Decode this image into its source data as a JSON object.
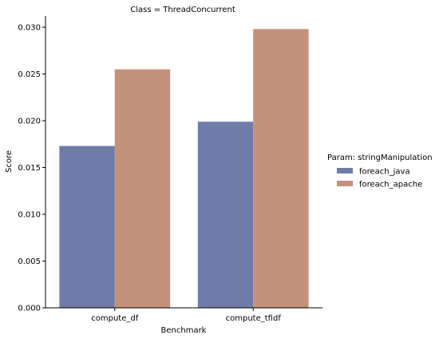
{
  "chart_data": {
    "type": "bar",
    "title": "Class = ThreadConcurrent",
    "xlabel": "Benchmark",
    "ylabel": "Score",
    "categories": [
      "compute_df",
      "compute_tfidf"
    ],
    "series": [
      {
        "name": "foreach_java",
        "values": [
          0.0173,
          0.0199
        ],
        "color": "#6f7ca8"
      },
      {
        "name": "foreach_apache",
        "values": [
          0.0255,
          0.0298
        ],
        "color": "#c4917a"
      }
    ],
    "ylim": [
      0,
      0.0312
    ],
    "yticks": [
      "0.000",
      "0.005",
      "0.010",
      "0.015",
      "0.020",
      "0.025",
      "0.030"
    ],
    "ytick_values": [
      0,
      0.005,
      0.01,
      0.015,
      0.02,
      0.025,
      0.03
    ],
    "grid": false,
    "legend": {
      "title": "Param: stringManipulation",
      "placement": "right"
    }
  }
}
